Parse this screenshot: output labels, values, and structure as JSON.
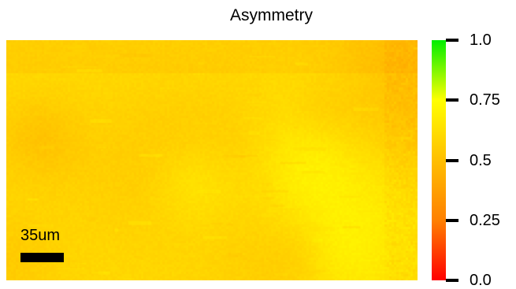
{
  "chart_data": {
    "type": "heatmap",
    "title": "Asymmetry",
    "colorbar": {
      "range": [
        0.0,
        1.0
      ],
      "ticks": [
        "1.0",
        "0.75",
        "0.5",
        "0.25",
        "0.0"
      ],
      "colors": [
        "#ff0000",
        "#ff8000",
        "#ffbf00",
        "#ffff00",
        "#00ee00"
      ]
    },
    "scale_bar_label": "35um",
    "value_range_observed": [
      0.45,
      0.8
    ]
  }
}
